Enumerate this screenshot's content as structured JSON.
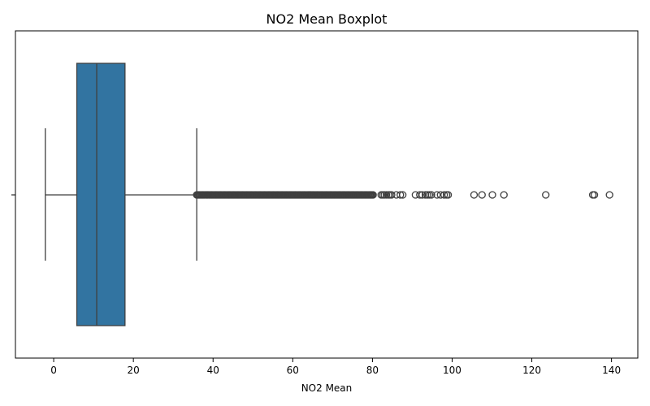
{
  "chart_data": {
    "type": "boxplot",
    "orientation": "horizontal",
    "title": "NO2 Mean Boxplot",
    "xlabel": "NO2 Mean",
    "ylabel": "",
    "xlim": [
      -9.6,
      146.6
    ],
    "x_ticks": [
      0,
      20,
      40,
      60,
      80,
      100,
      120,
      140
    ],
    "grid": false,
    "legend": "none",
    "colors": {
      "box": "#3274a1",
      "line": "#3f3f3f",
      "frame": "#000000"
    },
    "box": {
      "whisker_low": -2.1,
      "q1": 5.8,
      "median": 10.8,
      "q3": 17.9,
      "whisker_high": 35.9
    },
    "outlier_dense_range": [
      35.9,
      80.2
    ],
    "outliers": [
      82.2,
      82.6,
      83.0,
      83.5,
      84.0,
      84.4,
      84.8,
      86.0,
      87.0,
      87.6,
      90.8,
      91.9,
      92.5,
      93.3,
      93.8,
      94.3,
      94.8,
      96.2,
      97.1,
      98.0,
      98.6,
      99.0,
      105.5,
      107.5,
      110.1,
      113.0,
      123.5,
      135.3,
      135.7,
      139.5
    ]
  }
}
